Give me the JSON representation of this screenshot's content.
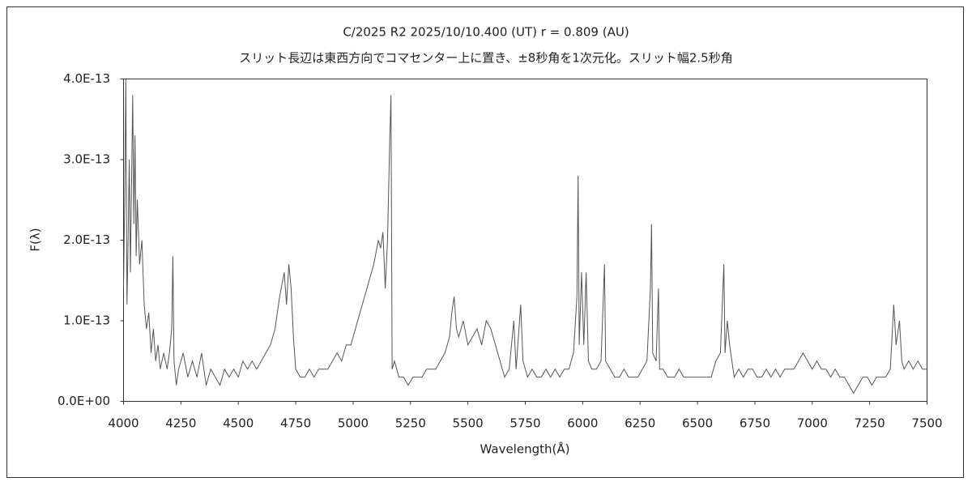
{
  "chart_data": {
    "type": "line",
    "title": "C/2025 R2    2025/10/10.400 (UT)    r = 0.809 (AU)",
    "subtitle": "スリット長辺は東西方向でコマセンター上に置き、±8秒角を1次元化。スリット幅2.5秒角",
    "x_label": "Wavelength(Å)",
    "y_label": "F(λ)",
    "xlim": [
      4000,
      7500
    ],
    "xticks": [
      4000,
      4250,
      4500,
      4750,
      5000,
      5250,
      5500,
      5750,
      6000,
      6250,
      6500,
      6750,
      7000,
      7250,
      7500
    ],
    "ylim": [
      0,
      4e-13
    ],
    "yticks": [
      {
        "value": 0,
        "label": "0.0E+00"
      },
      {
        "value": 1e-13,
        "label": "1.0E-13"
      },
      {
        "value": 2e-13,
        "label": "2.0E-13"
      },
      {
        "value": 3e-13,
        "label": "3.0E-13"
      },
      {
        "value": 4e-13,
        "label": "4.0E-13"
      }
    ],
    "grid": false,
    "series": [
      {
        "color": "#555555",
        "x": [
          4000,
          4005,
          4010,
          4015,
          4020,
          4025,
          4030,
          4040,
          4045,
          4050,
          4055,
          4060,
          4070,
          4080,
          4090,
          4100,
          4110,
          4120,
          4130,
          4140,
          4150,
          4160,
          4175,
          4190,
          4200,
          4210,
          4215,
          4220,
          4230,
          4240,
          4260,
          4280,
          4300,
          4320,
          4340,
          4360,
          4380,
          4400,
          4420,
          4440,
          4460,
          4480,
          4500,
          4520,
          4540,
          4560,
          4580,
          4600,
          4620,
          4640,
          4660,
          4680,
          4700,
          4710,
          4720,
          4730,
          4740,
          4750,
          4770,
          4790,
          4810,
          4830,
          4850,
          4870,
          4890,
          4910,
          4930,
          4950,
          4970,
          4990,
          5010,
          5030,
          5050,
          5070,
          5090,
          5110,
          5120,
          5130,
          5140,
          5150,
          5160,
          5165,
          5170,
          5180,
          5200,
          5220,
          5240,
          5260,
          5280,
          5300,
          5320,
          5340,
          5360,
          5380,
          5400,
          5420,
          5430,
          5440,
          5450,
          5460,
          5480,
          5500,
          5520,
          5540,
          5560,
          5580,
          5600,
          5620,
          5640,
          5660,
          5680,
          5700,
          5710,
          5730,
          5740,
          5760,
          5780,
          5800,
          5820,
          5840,
          5860,
          5880,
          5900,
          5920,
          5940,
          5960,
          5975,
          5980,
          5985,
          5995,
          6005,
          6015,
          6025,
          6040,
          6060,
          6080,
          6095,
          6100,
          6120,
          6140,
          6160,
          6180,
          6200,
          6220,
          6240,
          6260,
          6280,
          6295,
          6300,
          6305,
          6320,
          6330,
          6335,
          6350,
          6370,
          6400,
          6420,
          6440,
          6460,
          6480,
          6500,
          6520,
          6540,
          6560,
          6580,
          6600,
          6615,
          6620,
          6630,
          6640,
          6660,
          6680,
          6700,
          6720,
          6740,
          6760,
          6780,
          6800,
          6820,
          6840,
          6860,
          6880,
          6900,
          6920,
          6940,
          6960,
          6980,
          7000,
          7020,
          7040,
          7060,
          7080,
          7100,
          7120,
          7140,
          7160,
          7180,
          7200,
          7220,
          7240,
          7260,
          7280,
          7300,
          7320,
          7340,
          7355,
          7365,
          7380,
          7390,
          7400,
          7420,
          7440,
          7460,
          7480,
          7500
        ],
        "values": [
          1.4e-13,
          2.5e-13,
          4e-13,
          1.2e-13,
          2e-13,
          3e-13,
          1.6e-13,
          3.8e-13,
          2.2e-13,
          3.3e-13,
          1.8e-13,
          2.5e-13,
          1.7e-13,
          2e-13,
          1.2e-13,
          9e-14,
          1.1e-13,
          6e-14,
          9e-14,
          5e-14,
          7e-14,
          4e-14,
          6e-14,
          4e-14,
          6e-14,
          9e-14,
          1.8e-13,
          5e-14,
          2e-14,
          4e-14,
          6e-14,
          3e-14,
          5e-14,
          3e-14,
          6e-14,
          2e-14,
          4e-14,
          3e-14,
          2e-14,
          4e-14,
          3e-14,
          4e-14,
          3e-14,
          5e-14,
          4e-14,
          5e-14,
          4e-14,
          5e-14,
          6e-14,
          7e-14,
          9e-14,
          1.3e-13,
          1.6e-13,
          1.2e-13,
          1.7e-13,
          1.4e-13,
          8e-14,
          4e-14,
          3e-14,
          3e-14,
          4e-14,
          3e-14,
          4e-14,
          4e-14,
          4e-14,
          5e-14,
          6e-14,
          5e-14,
          7e-14,
          7e-14,
          9e-14,
          1.1e-13,
          1.3e-13,
          1.5e-13,
          1.7e-13,
          2e-13,
          1.9e-13,
          2.1e-13,
          1.4e-13,
          2e-13,
          3.3e-13,
          3.8e-13,
          4e-14,
          5e-14,
          3e-14,
          3e-14,
          2e-14,
          3e-14,
          3e-14,
          3e-14,
          4e-14,
          4e-14,
          4e-14,
          5e-14,
          6e-14,
          8e-14,
          1.1e-13,
          1.3e-13,
          9e-14,
          8e-14,
          1e-13,
          7e-14,
          8e-14,
          9e-14,
          7e-14,
          1e-13,
          9e-14,
          7e-14,
          5e-14,
          3e-14,
          4e-14,
          1e-13,
          4e-14,
          1.2e-13,
          5e-14,
          3e-14,
          4e-14,
          3e-14,
          3e-14,
          4e-14,
          3e-14,
          4e-14,
          3e-14,
          4e-14,
          4e-14,
          6e-14,
          1.3e-13,
          2.8e-13,
          7e-14,
          1.6e-13,
          7e-14,
          1.6e-13,
          5e-14,
          4e-14,
          4e-14,
          5e-14,
          1.7e-13,
          5e-14,
          4e-14,
          3e-14,
          3e-14,
          4e-14,
          3e-14,
          3e-14,
          3e-14,
          4e-14,
          5e-14,
          1.4e-13,
          2.2e-13,
          6e-14,
          5e-14,
          1.4e-13,
          4e-14,
          4e-14,
          3e-14,
          3e-14,
          4e-14,
          3e-14,
          3e-14,
          3e-14,
          3e-14,
          3e-14,
          3e-14,
          3e-14,
          5e-14,
          6e-14,
          1.7e-13,
          6e-14,
          1e-13,
          7e-14,
          3e-14,
          4e-14,
          3e-14,
          4e-14,
          4e-14,
          3e-14,
          3e-14,
          4e-14,
          3e-14,
          4e-14,
          3e-14,
          4e-14,
          4e-14,
          4e-14,
          5e-14,
          6e-14,
          5e-14,
          4e-14,
          5e-14,
          4e-14,
          4e-14,
          3e-14,
          4e-14,
          3e-14,
          3e-14,
          2e-14,
          1e-14,
          2e-14,
          3e-14,
          3e-14,
          2e-14,
          3e-14,
          3e-14,
          3e-14,
          4e-14,
          1.2e-13,
          7e-14,
          1e-13,
          5e-14,
          4e-14,
          5e-14,
          4e-14,
          5e-14,
          4e-14,
          4e-14
        ]
      }
    ]
  }
}
